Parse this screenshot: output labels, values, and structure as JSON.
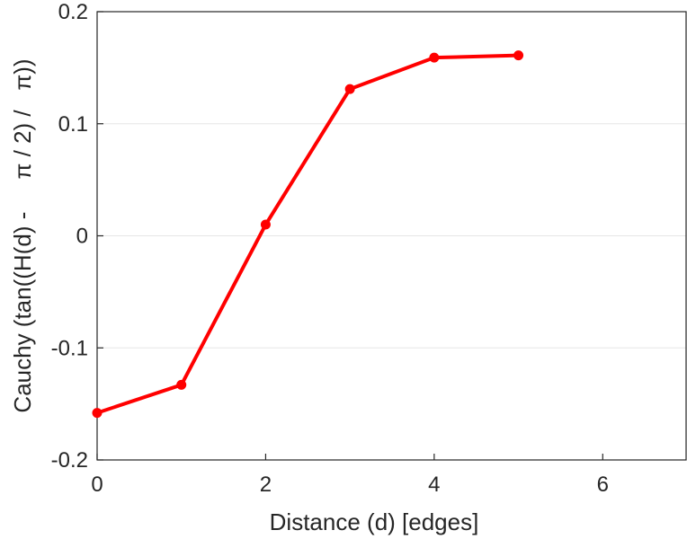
{
  "chart_data": {
    "type": "line",
    "xlabel": "Distance (d) [edges]",
    "ylabel": "Cauchy (tan((H(d) -     π / 2) /   π))",
    "xlim": [
      0,
      7
    ],
    "ylim": [
      -0.2,
      0.2
    ],
    "xticks": [
      0,
      2,
      4,
      6
    ],
    "yticks": [
      -0.2,
      -0.1,
      0,
      0.1,
      0.2
    ],
    "xtick_labels": [
      "0",
      "2",
      "4",
      "6"
    ],
    "ytick_labels": [
      "-0.2",
      "-0.1",
      "0",
      "0.1",
      "0.2"
    ],
    "grid": "horizontal",
    "series": [
      {
        "x": [
          0,
          1,
          2,
          3,
          4,
          5
        ],
        "values": [
          -0.158,
          -0.133,
          0.01,
          0.131,
          0.159,
          0.161
        ],
        "color": "#ff0000",
        "marker": "circle"
      }
    ]
  }
}
